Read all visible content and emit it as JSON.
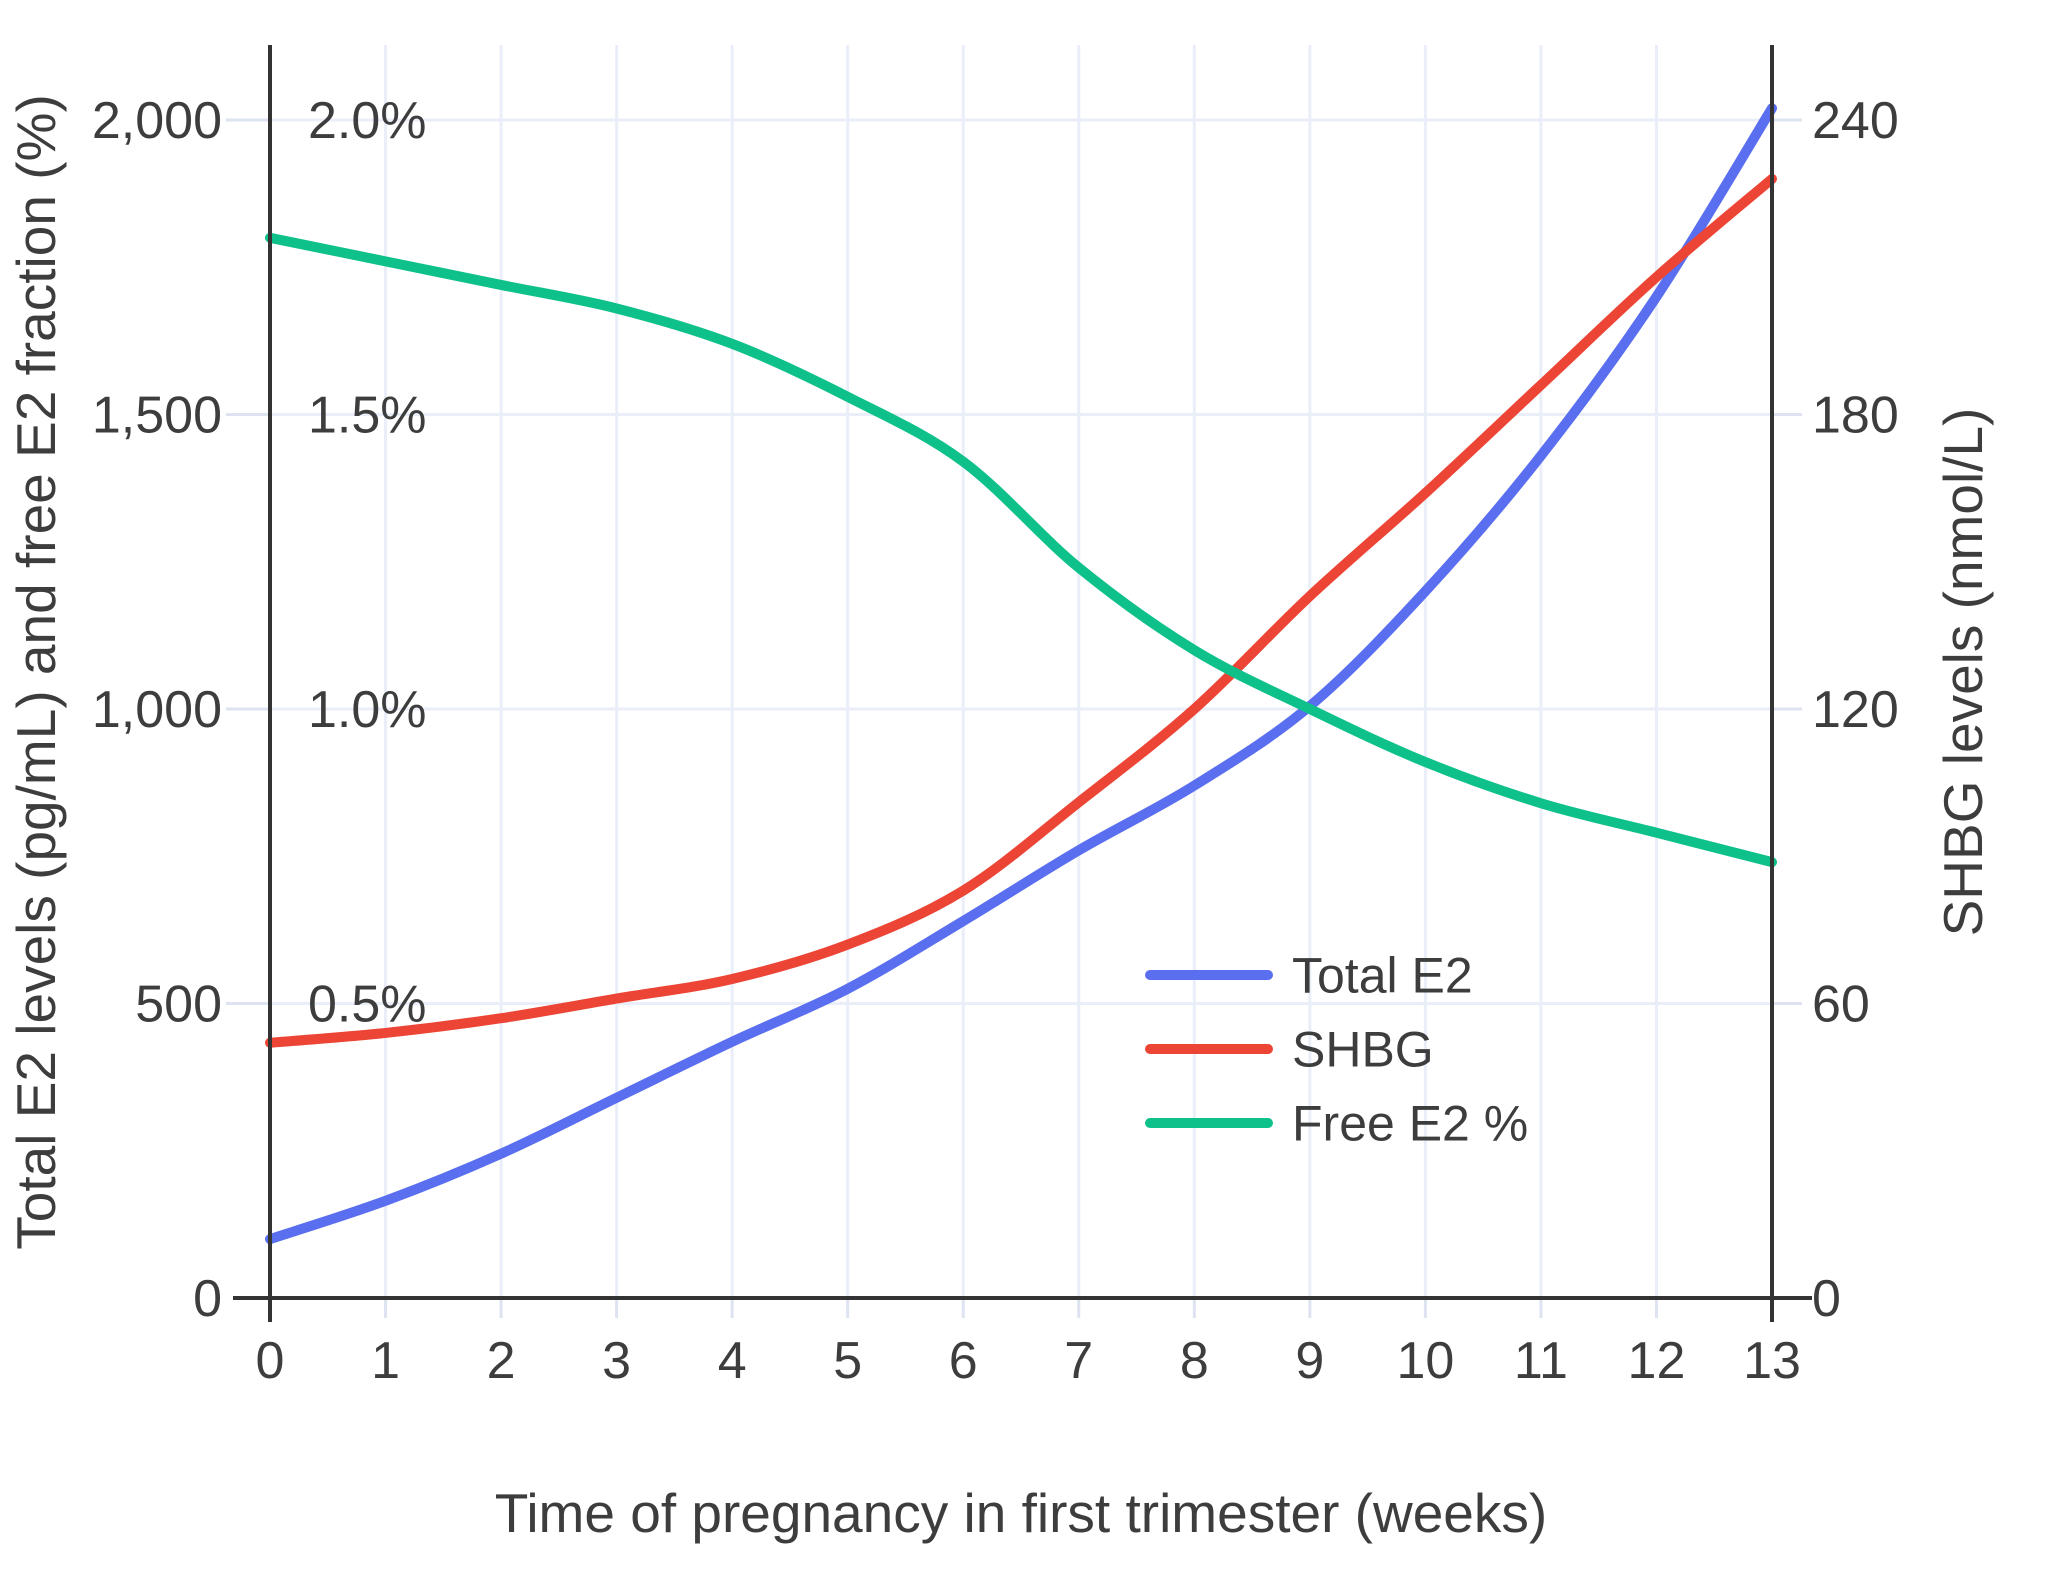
{
  "chart": {
    "x_axis": {
      "title": "Time of pregnancy in first trimester (weeks)",
      "tick_labels": [
        "0",
        "1",
        "2",
        "3",
        "4",
        "5",
        "6",
        "7",
        "8",
        "9",
        "10",
        "11",
        "12",
        "13"
      ],
      "tick_values": [
        0,
        1,
        2,
        3,
        4,
        5,
        6,
        7,
        8,
        9,
        10,
        11,
        12,
        13
      ],
      "range": [
        0,
        13
      ]
    },
    "y_left": {
      "title": "Total E2 levels (pg/mL) and free E2 fraction (%)",
      "tick_labels": [
        "0",
        "500",
        "1,000",
        "1,500",
        "2,000"
      ],
      "tick_values": [
        0,
        500,
        1000,
        1500,
        2000
      ],
      "percent_labels": [
        "0.5%",
        "1.0%",
        "1.5%",
        "2.0%"
      ],
      "percent_values": [
        500,
        1000,
        1500,
        2000
      ],
      "range": [
        0,
        2000
      ]
    },
    "y_right": {
      "title": "SHBG levels (nmol/L)",
      "tick_labels": [
        "0",
        "60",
        "120",
        "180",
        "240"
      ],
      "tick_values": [
        0,
        60,
        120,
        180,
        240
      ],
      "range": [
        0,
        240
      ]
    },
    "legend": {
      "entries": [
        {
          "label": "Total E2",
          "color": "#5a6ef0"
        },
        {
          "label": "SHBG",
          "color": "#ec4535"
        },
        {
          "label": "Free E2 %",
          "color": "#0ec18a"
        }
      ]
    }
  },
  "chart_data": {
    "type": "line",
    "x": [
      0,
      1,
      2,
      3,
      4,
      5,
      6,
      7,
      8,
      9,
      10,
      11,
      12,
      13
    ],
    "xlabel": "Time of pregnancy in first trimester (weeks)",
    "ylabel_left": "Total E2 levels (pg/mL) and free E2 fraction (%)",
    "ylabel_right": "SHBG levels (nmol/L)",
    "ylim_left": [
      0,
      2000
    ],
    "ylim_right": [
      0,
      240
    ],
    "grid": true,
    "legend_position": "inside lower-right",
    "series": [
      {
        "name": "Total E2",
        "axis": "left",
        "unit": "pg/mL",
        "color": "#5a6ef0",
        "values": [
          100,
          165,
          245,
          340,
          435,
          525,
          640,
          760,
          870,
          1005,
          1200,
          1430,
          1700,
          2020
        ]
      },
      {
        "name": "SHBG",
        "axis": "right",
        "unit": "nmol/L",
        "color": "#ec4535",
        "values": [
          52,
          54,
          57,
          61,
          65,
          72,
          83,
          101,
          120,
          143,
          164,
          186,
          208,
          228
        ]
      },
      {
        "name": "Free E2 %",
        "axis": "left-percent",
        "unit": "%",
        "color": "#0ec18a",
        "values": [
          1.8,
          1.76,
          1.72,
          1.68,
          1.62,
          1.53,
          1.42,
          1.24,
          1.1,
          1.0,
          0.91,
          0.84,
          0.79,
          0.74
        ]
      }
    ]
  },
  "colors": {
    "background": "#ffffff",
    "axis_line": "#333333",
    "grid_line": "#e9eef8",
    "tick_line": "#dde3f1",
    "text": "#3d3d3d"
  }
}
